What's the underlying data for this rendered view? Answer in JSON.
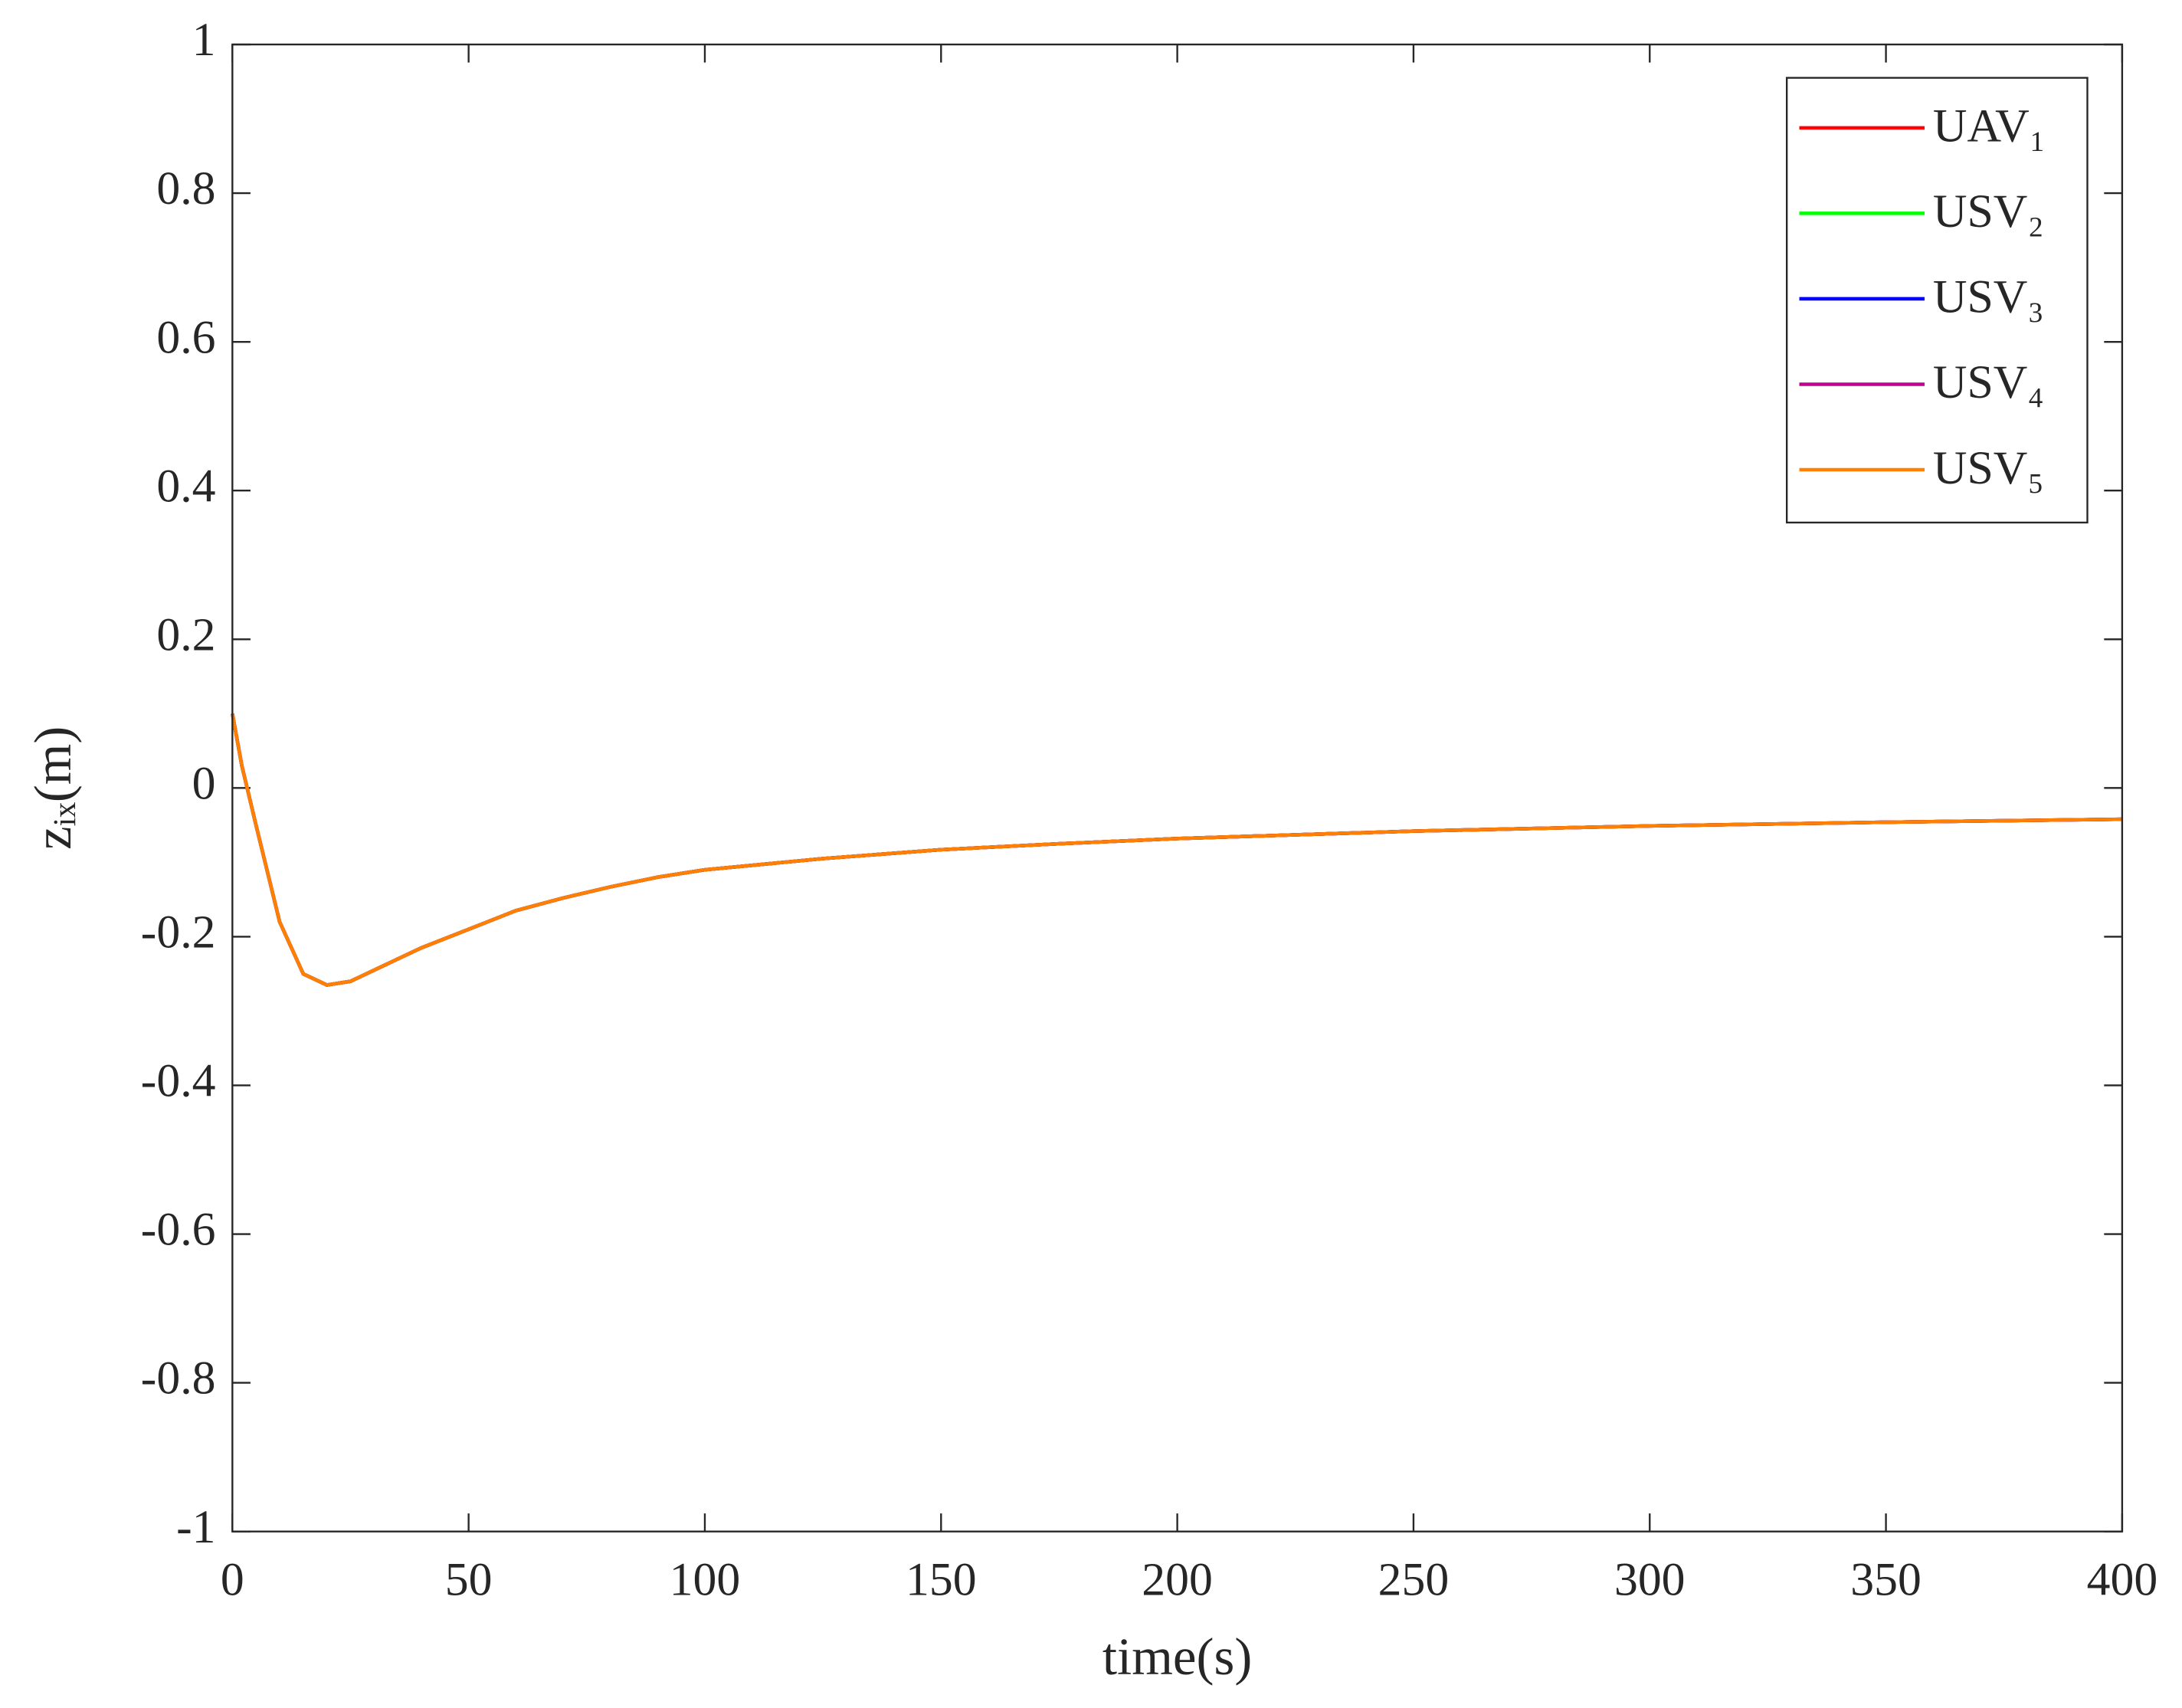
{
  "chart_data": {
    "type": "line",
    "x_label": "time(s)",
    "y_label": "zᵢₓ(m)",
    "x": [
      0,
      2,
      5,
      10,
      15,
      20,
      25,
      30,
      40,
      50,
      60,
      70,
      80,
      90,
      100,
      125,
      150,
      175,
      200,
      250,
      300,
      350,
      400
    ],
    "series": [
      {
        "name": "UAV₁",
        "color": "#ff0000",
        "values": [
          0.1,
          0.03,
          -0.05,
          -0.18,
          -0.25,
          -0.265,
          -0.26,
          -0.245,
          -0.215,
          -0.19,
          -0.165,
          -0.148,
          -0.133,
          -0.12,
          -0.11,
          -0.095,
          -0.083,
          -0.075,
          -0.068,
          -0.058,
          -0.051,
          -0.046,
          -0.042
        ]
      },
      {
        "name": "USV₂",
        "color": "#00ff00",
        "values": [
          0.1,
          0.03,
          -0.05,
          -0.18,
          -0.25,
          -0.265,
          -0.26,
          -0.245,
          -0.215,
          -0.19,
          -0.165,
          -0.148,
          -0.133,
          -0.12,
          -0.11,
          -0.095,
          -0.083,
          -0.075,
          -0.068,
          -0.058,
          -0.051,
          -0.046,
          -0.042
        ]
      },
      {
        "name": "USV₃",
        "color": "#0000ff",
        "values": [
          0.1,
          0.03,
          -0.05,
          -0.18,
          -0.25,
          -0.265,
          -0.26,
          -0.245,
          -0.215,
          -0.19,
          -0.165,
          -0.148,
          -0.133,
          -0.12,
          -0.11,
          -0.095,
          -0.083,
          -0.075,
          -0.068,
          -0.058,
          -0.051,
          -0.046,
          -0.042
        ]
      },
      {
        "name": "USV₄",
        "color": "#c0008f",
        "values": [
          0.1,
          0.03,
          -0.05,
          -0.18,
          -0.25,
          -0.265,
          -0.26,
          -0.245,
          -0.215,
          -0.19,
          -0.165,
          -0.148,
          -0.133,
          -0.12,
          -0.11,
          -0.095,
          -0.083,
          -0.075,
          -0.068,
          -0.058,
          -0.051,
          -0.046,
          -0.042
        ]
      },
      {
        "name": "USV₅",
        "color": "#ff8000",
        "values": [
          0.1,
          0.03,
          -0.05,
          -0.18,
          -0.25,
          -0.265,
          -0.26,
          -0.245,
          -0.215,
          -0.19,
          -0.165,
          -0.148,
          -0.133,
          -0.12,
          -0.11,
          -0.095,
          -0.083,
          -0.075,
          -0.068,
          -0.058,
          -0.051,
          -0.046,
          -0.042
        ]
      }
    ],
    "xlim": [
      0,
      400
    ],
    "xticks": [
      0,
      50,
      100,
      150,
      200,
      250,
      300,
      350,
      400
    ],
    "ylim": [
      -1,
      1
    ],
    "yticks": [
      -1,
      -0.8,
      -0.6,
      -0.4,
      -0.2,
      0,
      0.2,
      0.4,
      0.6,
      0.8,
      1
    ],
    "grid": false,
    "legend": "upper right"
  }
}
